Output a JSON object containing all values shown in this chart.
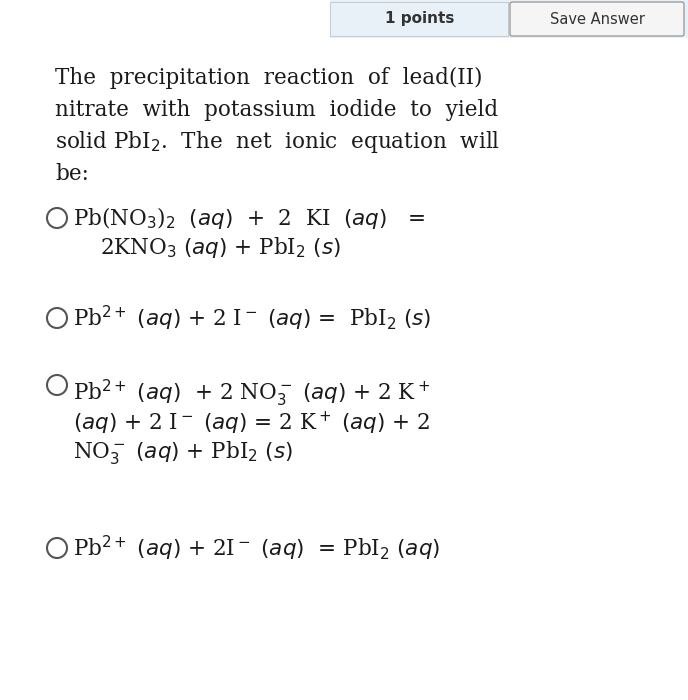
{
  "bg_color": "#ffffff",
  "text_color": "#1a1a1a",
  "fig_width": 6.88,
  "fig_height": 7.0,
  "dpi": 100,
  "header": {
    "points_text": "1 points",
    "save_text": "Save Answer"
  },
  "intro_lines": [
    "The  precipitation  reaction  of  lead(II)",
    "nitrate  with  potassium  iodide  to  yield",
    "solid PbI$_2$.  The  net  ionic  equation  will",
    "be:"
  ],
  "option_A_line1": "Pb(NO$_3$)$_2$  $(aq)$  +  2  KI  $(aq)$   =",
  "option_A_line2": "2KNO$_3$ $(aq)$ + PbI$_2$ $(s)$",
  "option_B_line1": "Pb$^{2+}$ $(aq)$ + 2 I$^-$ $(aq)$ =  PbI$_2$ $(s)$",
  "option_C_line1": "Pb$^{2+}$ $(aq)$  + 2 NO$_3^-$ $(aq)$ + 2 K$^+$",
  "option_C_line2": "$(aq)$ + 2 I$^-$ $(aq)$ = 2 K$^+$ $(aq)$ + 2",
  "option_C_line3": "NO$_3^-$ $(aq)$ + PbI$_2$ $(s)$",
  "option_D_line1": "Pb$^{2+}$ $(aq)$ + 2I$^-$ $(aq)$  = PbI$_2$ $(aq)$"
}
